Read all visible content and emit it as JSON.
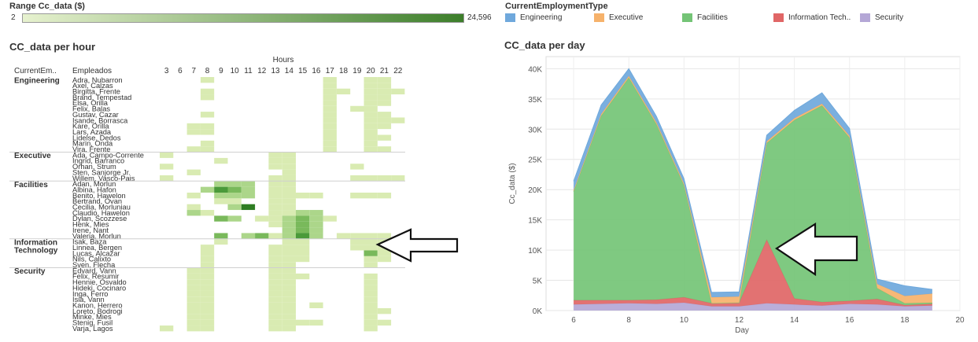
{
  "range": {
    "title": "Range Cc_data ($)",
    "min_label": "2",
    "max_label": "24,596",
    "color_low": "#e7f2cf",
    "color_high": "#3c7e2a"
  },
  "legend": {
    "title": "CurrentEmploymentType",
    "items": [
      {
        "label": "Engineering",
        "color": "#6fa8dc"
      },
      {
        "label": "Executive",
        "color": "#f6b26b"
      },
      {
        "label": "Facilities",
        "color": "#74c476"
      },
      {
        "label": "Information Tech..",
        "color": "#e06666"
      },
      {
        "label": "Security",
        "color": "#b4a7d6"
      }
    ]
  },
  "heatmap": {
    "title": "CC_data per hour",
    "col_header": "Hours",
    "group_col_label": "CurrentEm..",
    "name_col_label": "Empleados"
  },
  "area": {
    "title": "CC_data per day"
  },
  "chart_data": [
    {
      "type": "heatmap",
      "title": "CC_data per hour",
      "xlabel": "Hours",
      "hours": [
        3,
        6,
        7,
        8,
        9,
        10,
        11,
        12,
        13,
        14,
        15,
        16,
        17,
        18,
        19,
        20,
        21,
        22
      ],
      "groups": [
        {
          "name": "Engineering",
          "employees": [
            "Adra, Nubarron",
            "Axel, Calzas",
            "Birgitta, Frente",
            "Brand, Tempestad",
            "Elsa, Orilla",
            "Felix, Balas",
            "Gustav, Cazar",
            "Isande, Borrasca",
            "Kare, Orilla",
            "Lars, Azada",
            "Lidelse, Dedos",
            "Marin, Onda",
            "Vira, Frente"
          ]
        },
        {
          "name": "Executive",
          "employees": [
            "Ada, Campo-Corrente",
            "Ingrid, Barranco",
            "Orhan, Strum",
            "Sten, Sanjorge Jr.",
            "Willem, Vasco-Pais"
          ]
        },
        {
          "name": "Facilities",
          "employees": [
            "Adan, Morlun",
            "Albina, Hafon",
            "Benito, Hawelon",
            "Bertrand, Ovan",
            "Cecilia, Morluniau",
            "Claudio, Hawelon",
            "Dylan, Scozzese",
            "Henk, Mies",
            "Irene, Nant",
            "Valeria, Morlun"
          ]
        },
        {
          "name": "Information Technology",
          "employees": [
            "Isak, Baza",
            "Linnea, Bergen",
            "Lucas, Alcazar",
            "Nils, Calixto",
            "Sven, Flecha"
          ]
        },
        {
          "name": "Security",
          "employees": [
            "Edvard, Vann",
            "Felix, Resumir",
            "Hennie, Osvaldo",
            "Hideki, Cocinaro",
            "Inga, Ferro",
            "Isia, Vann",
            "Kanon, Herrero",
            "Loreto, Bodrogi",
            "Minke, Mies",
            "Stenig, Fusil",
            "Varja, Lagos"
          ]
        }
      ],
      "cells": [
        [
          0,
          3,
          1
        ],
        [
          0,
          12,
          1
        ],
        [
          0,
          15,
          1
        ],
        [
          0,
          16,
          1
        ],
        [
          1,
          12,
          1
        ],
        [
          1,
          15,
          1
        ],
        [
          1,
          16,
          1
        ],
        [
          2,
          3,
          1
        ],
        [
          2,
          12,
          1
        ],
        [
          2,
          13,
          1
        ],
        [
          2,
          15,
          1
        ],
        [
          2,
          16,
          1
        ],
        [
          2,
          17,
          1
        ],
        [
          3,
          3,
          1
        ],
        [
          3,
          12,
          1
        ],
        [
          3,
          15,
          1
        ],
        [
          3,
          16,
          1
        ],
        [
          4,
          12,
          1
        ],
        [
          4,
          15,
          1
        ],
        [
          4,
          16,
          1
        ],
        [
          5,
          12,
          1
        ],
        [
          5,
          15,
          1
        ],
        [
          5,
          14,
          1
        ],
        [
          6,
          12,
          1
        ],
        [
          6,
          15,
          1
        ],
        [
          6,
          16,
          1
        ],
        [
          6,
          3,
          1
        ],
        [
          7,
          12,
          1
        ],
        [
          7,
          15,
          1
        ],
        [
          7,
          16,
          1
        ],
        [
          7,
          17,
          1
        ],
        [
          8,
          2,
          1
        ],
        [
          8,
          3,
          1
        ],
        [
          8,
          12,
          1
        ],
        [
          8,
          15,
          1
        ],
        [
          8,
          16,
          1
        ],
        [
          9,
          2,
          1
        ],
        [
          9,
          3,
          1
        ],
        [
          9,
          12,
          1
        ],
        [
          9,
          15,
          1
        ],
        [
          10,
          12,
          1
        ],
        [
          10,
          15,
          1
        ],
        [
          10,
          16,
          1
        ],
        [
          11,
          3,
          1
        ],
        [
          11,
          12,
          1
        ],
        [
          11,
          15,
          1
        ],
        [
          12,
          2,
          1
        ],
        [
          12,
          3,
          1
        ],
        [
          12,
          12,
          1
        ],
        [
          12,
          15,
          1
        ],
        [
          12,
          16,
          1
        ],
        [
          13,
          0,
          1
        ],
        [
          13,
          8,
          1
        ],
        [
          13,
          9,
          1
        ],
        [
          14,
          4,
          1
        ],
        [
          14,
          8,
          1
        ],
        [
          14,
          9,
          1
        ],
        [
          15,
          0,
          1
        ],
        [
          15,
          8,
          1
        ],
        [
          15,
          9,
          1
        ],
        [
          15,
          14,
          1
        ],
        [
          16,
          2,
          1
        ],
        [
          16,
          9,
          1
        ],
        [
          17,
          0,
          1
        ],
        [
          17,
          8,
          1
        ],
        [
          17,
          9,
          1
        ],
        [
          17,
          14,
          1
        ],
        [
          17,
          15,
          1
        ],
        [
          17,
          16,
          1
        ],
        [
          17,
          17,
          1
        ],
        [
          18,
          4,
          2
        ],
        [
          18,
          5,
          2
        ],
        [
          18,
          6,
          2
        ],
        [
          18,
          8,
          1
        ],
        [
          18,
          9,
          1
        ],
        [
          19,
          3,
          2
        ],
        [
          19,
          4,
          4
        ],
        [
          19,
          5,
          3
        ],
        [
          19,
          6,
          2
        ],
        [
          19,
          8,
          1
        ],
        [
          19,
          9,
          1
        ],
        [
          20,
          2,
          1
        ],
        [
          20,
          4,
          2
        ],
        [
          20,
          5,
          2
        ],
        [
          20,
          6,
          2
        ],
        [
          20,
          8,
          1
        ],
        [
          20,
          9,
          1
        ],
        [
          20,
          10,
          1
        ],
        [
          20,
          11,
          1
        ],
        [
          20,
          14,
          1
        ],
        [
          20,
          15,
          1
        ],
        [
          20,
          16,
          1
        ],
        [
          21,
          4,
          1
        ],
        [
          21,
          5,
          1
        ],
        [
          21,
          8,
          1
        ],
        [
          21,
          9,
          1
        ],
        [
          22,
          2,
          1
        ],
        [
          22,
          5,
          2
        ],
        [
          22,
          6,
          5
        ],
        [
          22,
          8,
          1
        ],
        [
          22,
          9,
          1
        ],
        [
          23,
          2,
          2
        ],
        [
          23,
          3,
          1
        ],
        [
          23,
          8,
          1
        ],
        [
          23,
          9,
          1
        ],
        [
          23,
          10,
          2
        ],
        [
          23,
          11,
          2
        ],
        [
          24,
          4,
          3
        ],
        [
          24,
          5,
          2
        ],
        [
          24,
          7,
          1
        ],
        [
          24,
          8,
          1
        ],
        [
          24,
          9,
          2
        ],
        [
          24,
          10,
          3
        ],
        [
          24,
          11,
          2
        ],
        [
          24,
          12,
          1
        ],
        [
          25,
          8,
          1
        ],
        [
          25,
          9,
          2
        ],
        [
          25,
          10,
          3
        ],
        [
          25,
          11,
          2
        ],
        [
          26,
          9,
          2
        ],
        [
          26,
          10,
          3
        ],
        [
          26,
          11,
          2
        ],
        [
          27,
          4,
          3
        ],
        [
          27,
          6,
          2
        ],
        [
          27,
          7,
          3
        ],
        [
          27,
          8,
          1
        ],
        [
          27,
          9,
          2
        ],
        [
          27,
          10,
          4
        ],
        [
          27,
          11,
          2
        ],
        [
          27,
          13,
          1
        ],
        [
          27,
          14,
          1
        ],
        [
          27,
          15,
          1
        ],
        [
          27,
          16,
          1
        ],
        [
          28,
          4,
          1
        ],
        [
          28,
          9,
          1
        ],
        [
          28,
          10,
          1
        ],
        [
          28,
          14,
          1
        ],
        [
          28,
          15,
          1
        ],
        [
          28,
          16,
          1
        ],
        [
          29,
          3,
          1
        ],
        [
          29,
          8,
          1
        ],
        [
          29,
          9,
          1
        ],
        [
          29,
          10,
          1
        ],
        [
          29,
          14,
          1
        ],
        [
          29,
          15,
          1
        ],
        [
          29,
          16,
          1
        ],
        [
          30,
          3,
          1
        ],
        [
          30,
          8,
          1
        ],
        [
          30,
          9,
          1
        ],
        [
          30,
          10,
          1
        ],
        [
          30,
          15,
          3
        ],
        [
          30,
          16,
          1
        ],
        [
          31,
          3,
          1
        ],
        [
          31,
          8,
          1
        ],
        [
          31,
          9,
          1
        ],
        [
          31,
          10,
          1
        ],
        [
          31,
          15,
          1
        ],
        [
          31,
          16,
          1
        ],
        [
          32,
          3,
          1
        ],
        [
          32,
          8,
          1
        ],
        [
          32,
          9,
          1
        ],
        [
          32,
          15,
          1
        ],
        [
          33,
          2,
          1
        ],
        [
          33,
          3,
          1
        ],
        [
          33,
          8,
          1
        ],
        [
          33,
          9,
          1
        ],
        [
          34,
          2,
          1
        ],
        [
          34,
          3,
          1
        ],
        [
          34,
          8,
          1
        ],
        [
          34,
          9,
          1
        ],
        [
          34,
          10,
          1
        ],
        [
          34,
          15,
          1
        ],
        [
          35,
          2,
          1
        ],
        [
          35,
          3,
          1
        ],
        [
          35,
          8,
          1
        ],
        [
          35,
          9,
          1
        ],
        [
          35,
          15,
          1
        ],
        [
          36,
          2,
          1
        ],
        [
          36,
          3,
          1
        ],
        [
          36,
          8,
          1
        ],
        [
          36,
          9,
          1
        ],
        [
          36,
          15,
          1
        ],
        [
          37,
          2,
          1
        ],
        [
          37,
          3,
          1
        ],
        [
          37,
          8,
          1
        ],
        [
          37,
          9,
          1
        ],
        [
          37,
          15,
          1
        ],
        [
          38,
          2,
          1
        ],
        [
          38,
          3,
          1
        ],
        [
          38,
          8,
          1
        ],
        [
          38,
          9,
          1
        ],
        [
          38,
          15,
          1
        ],
        [
          39,
          2,
          1
        ],
        [
          39,
          3,
          1
        ],
        [
          39,
          8,
          1
        ],
        [
          39,
          9,
          1
        ],
        [
          39,
          11,
          1
        ],
        [
          39,
          15,
          1
        ],
        [
          40,
          2,
          1
        ],
        [
          40,
          3,
          1
        ],
        [
          40,
          8,
          1
        ],
        [
          40,
          9,
          1
        ],
        [
          40,
          15,
          1
        ],
        [
          40,
          16,
          1
        ],
        [
          41,
          2,
          1
        ],
        [
          41,
          3,
          1
        ],
        [
          41,
          8,
          1
        ],
        [
          41,
          9,
          1
        ],
        [
          41,
          15,
          1
        ],
        [
          42,
          2,
          1
        ],
        [
          42,
          3,
          1
        ],
        [
          42,
          8,
          1
        ],
        [
          42,
          9,
          1
        ],
        [
          42,
          10,
          1
        ],
        [
          42,
          11,
          1
        ],
        [
          42,
          15,
          1
        ],
        [
          42,
          16,
          1
        ],
        [
          43,
          0,
          1
        ],
        [
          43,
          2,
          1
        ],
        [
          43,
          3,
          1
        ],
        [
          43,
          8,
          1
        ],
        [
          43,
          9,
          1
        ],
        [
          43,
          15,
          1
        ]
      ]
    },
    {
      "type": "area",
      "title": "CC_data per day",
      "xlabel": "Day",
      "ylabel": "Cc_data ($)",
      "xlim": [
        5,
        20
      ],
      "ylim": [
        0,
        42000
      ],
      "xticks": [
        6,
        8,
        10,
        12,
        14,
        16,
        18,
        20
      ],
      "yticks": [
        0,
        5000,
        10000,
        15000,
        20000,
        25000,
        30000,
        35000,
        40000
      ],
      "ytick_labels": [
        "0K",
        "5K",
        "10K",
        "15K",
        "20K",
        "25K",
        "30K",
        "35K",
        "40K"
      ],
      "x": [
        6,
        7,
        8,
        9,
        10,
        11,
        12,
        13,
        14,
        15,
        16,
        17,
        18,
        19
      ],
      "series": [
        {
          "name": "Security",
          "color": "#b4a7d6",
          "values": [
            1000,
            1100,
            1200,
            1100,
            1300,
            700,
            700,
            1200,
            1000,
            800,
            1100,
            1000,
            700,
            800
          ]
        },
        {
          "name": "Information Tech..",
          "color": "#e06666",
          "values": [
            700,
            600,
            500,
            700,
            900,
            500,
            600,
            10500,
            1000,
            600,
            500,
            900,
            200,
            300
          ]
        },
        {
          "name": "Facilities",
          "color": "#74c476",
          "values": [
            18000,
            30500,
            36800,
            29000,
            18500,
            0,
            0,
            16000,
            29500,
            32500,
            27000,
            1800,
            300,
            200
          ]
        },
        {
          "name": "Executive",
          "color": "#f6b26b",
          "values": [
            200,
            300,
            300,
            300,
            300,
            1000,
            1000,
            300,
            300,
            300,
            300,
            700,
            1200,
            1500
          ]
        },
        {
          "name": "Engineering",
          "color": "#6fa8dc",
          "values": [
            1500,
            1500,
            1200,
            1000,
            800,
            800,
            800,
            1000,
            1300,
            1800,
            1200,
            800,
            1700,
            700
          ]
        }
      ]
    }
  ]
}
